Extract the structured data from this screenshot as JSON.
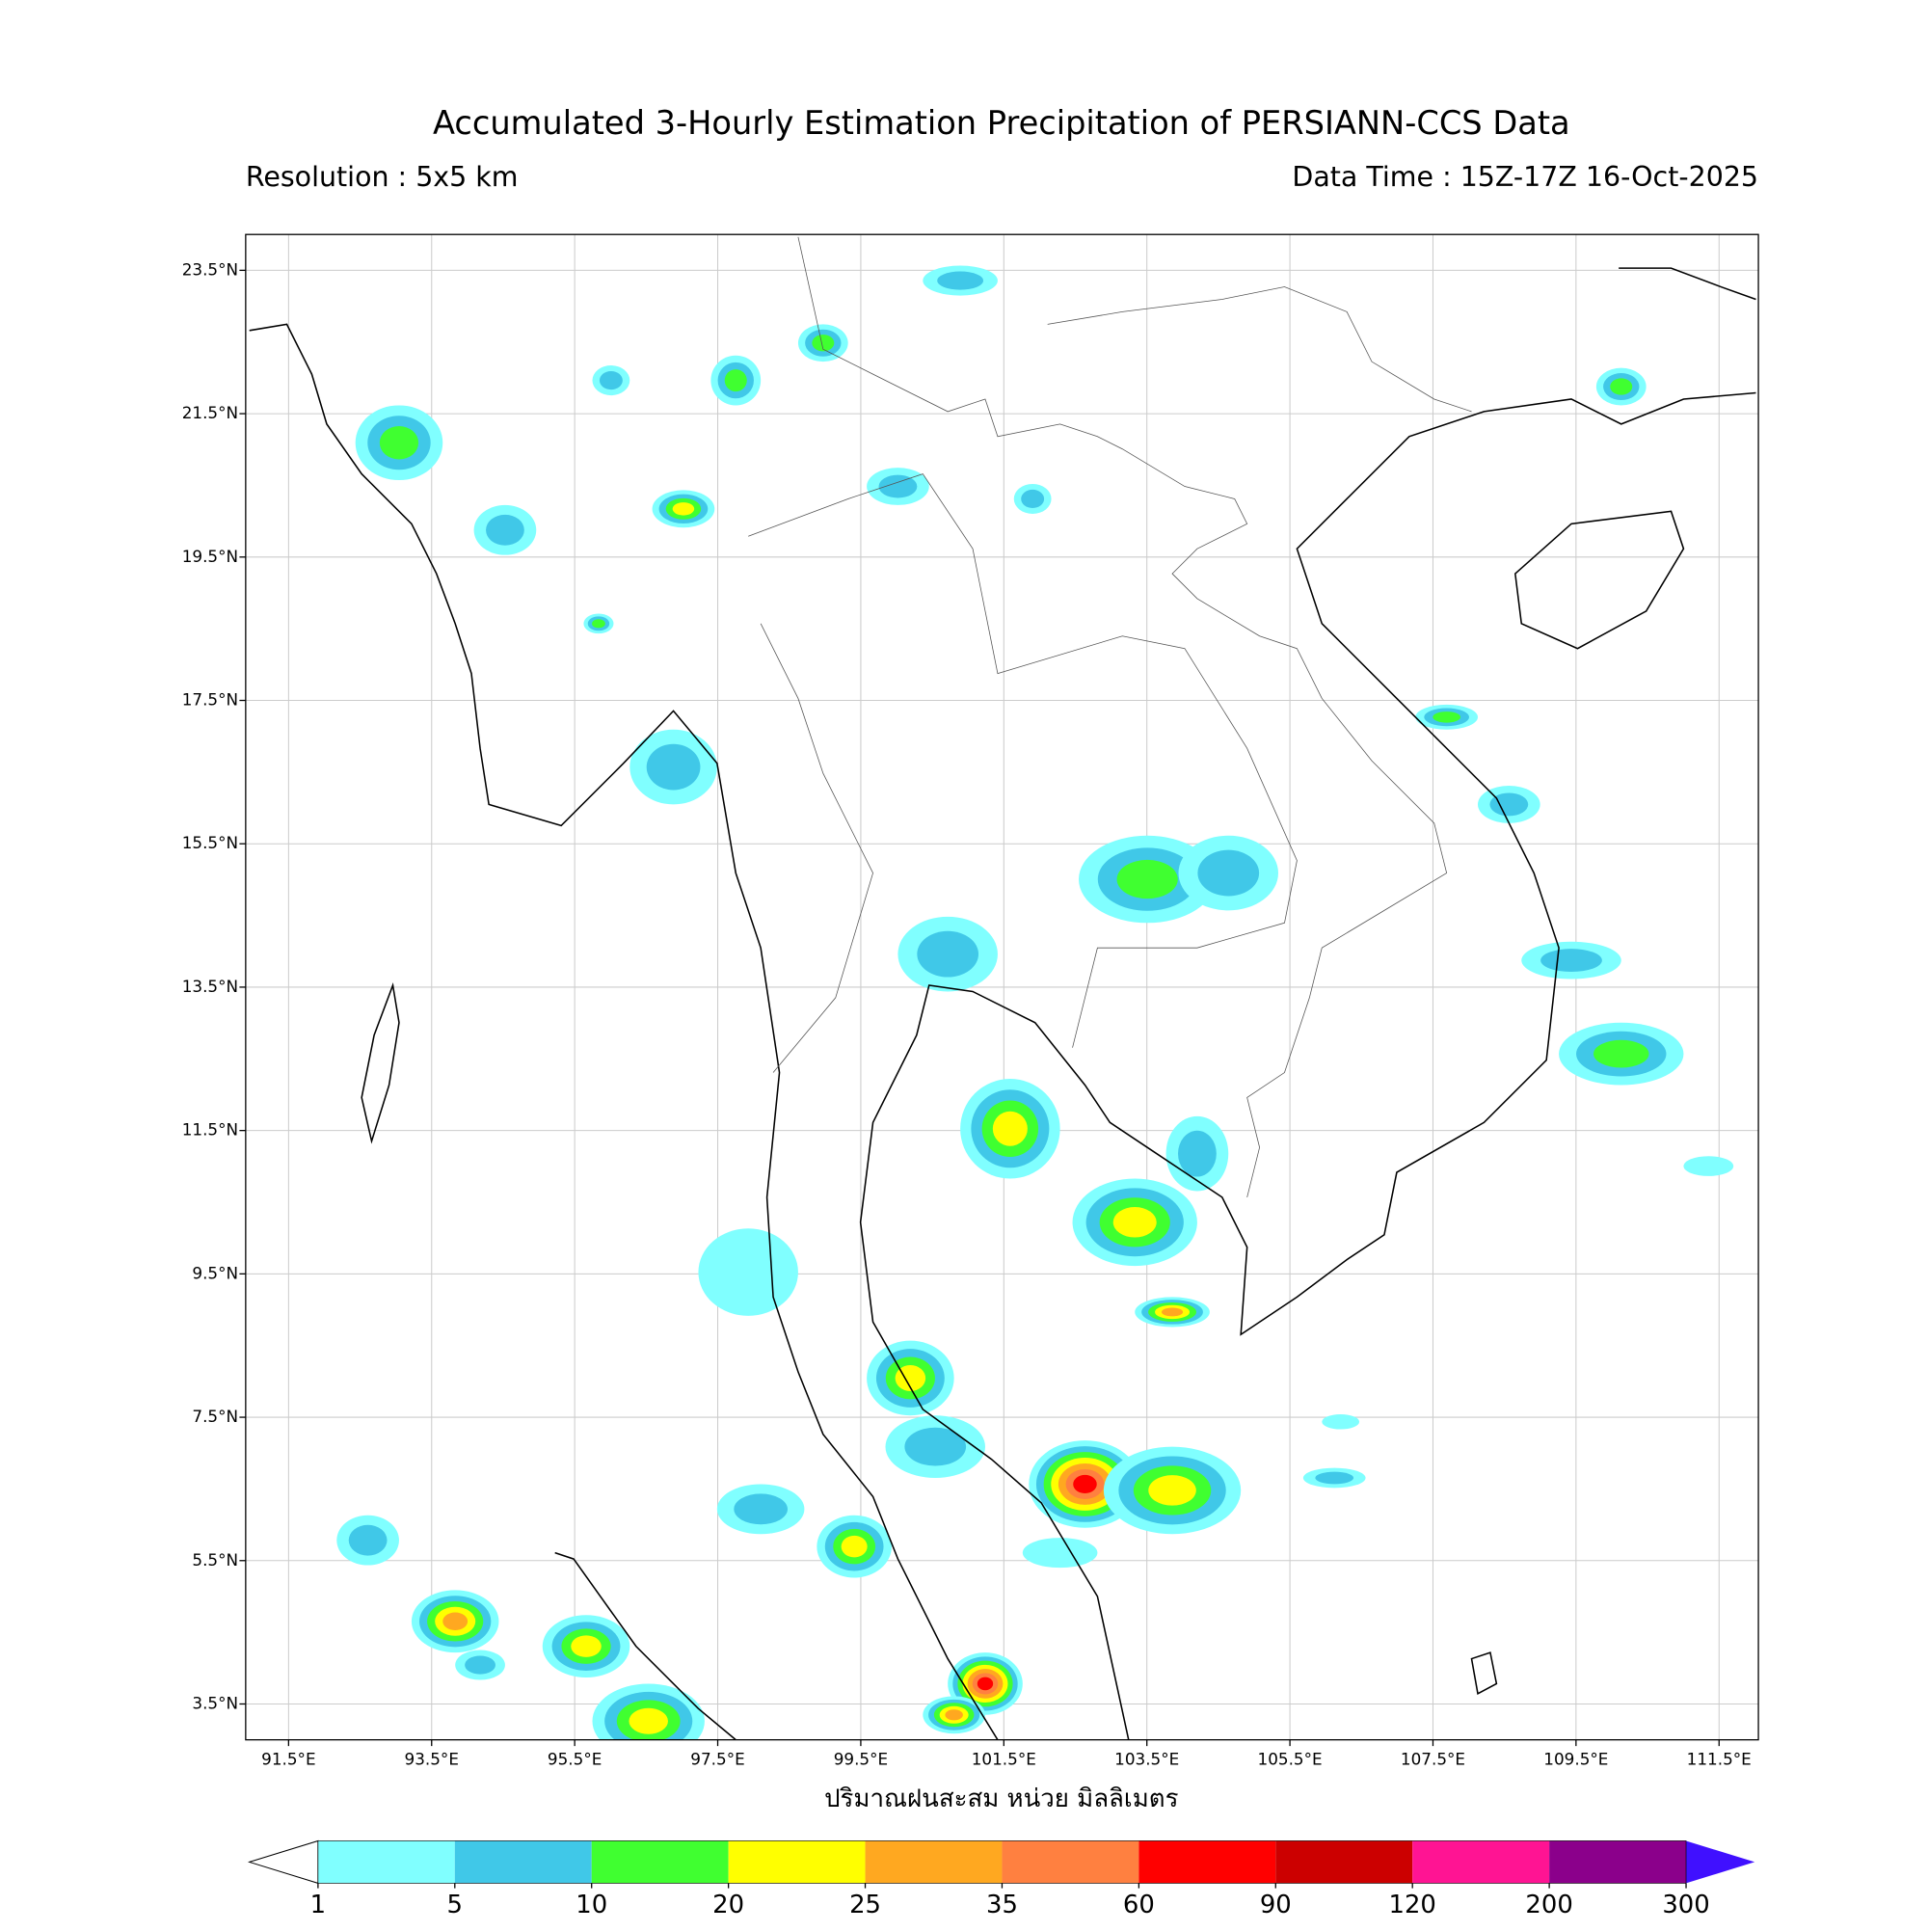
{
  "header": {
    "title": "Accumulated 3-Hourly Estimation Precipitation of PERSIANN-CCS Data",
    "resolution": "Resolution : 5x5 km",
    "data_time": "Data Time : 15Z-17Z 16-Oct-2025"
  },
  "map": {
    "lon_range": [
      90.9,
      112.05
    ],
    "lat_range": [
      3.0,
      24.0
    ],
    "lon_ticks": [
      {
        "value": 91.5,
        "label": "91.5°E"
      },
      {
        "value": 93.5,
        "label": "93.5°E"
      },
      {
        "value": 95.5,
        "label": "95.5°E"
      },
      {
        "value": 97.5,
        "label": "97.5°E"
      },
      {
        "value": 99.5,
        "label": "99.5°E"
      },
      {
        "value": 101.5,
        "label": "101.5°E"
      },
      {
        "value": 103.5,
        "label": "103.5°E"
      },
      {
        "value": 105.5,
        "label": "105.5°E"
      },
      {
        "value": 107.5,
        "label": "107.5°E"
      },
      {
        "value": 109.5,
        "label": "109.5°E"
      },
      {
        "value": 111.5,
        "label": "111.5°E"
      }
    ],
    "lat_ticks": [
      {
        "value": 23.5,
        "label": "23.5°N"
      },
      {
        "value": 21.5,
        "label": "21.5°N"
      },
      {
        "value": 19.5,
        "label": "19.5°N"
      },
      {
        "value": 17.5,
        "label": "17.5°N"
      },
      {
        "value": 15.5,
        "label": "15.5°N"
      },
      {
        "value": 13.5,
        "label": "13.5°N"
      },
      {
        "value": 11.5,
        "label": "11.5°N"
      },
      {
        "value": 9.5,
        "label": "9.5°N"
      },
      {
        "value": 7.5,
        "label": "7.5°N"
      },
      {
        "value": 5.5,
        "label": "5.5°N"
      },
      {
        "value": 3.5,
        "label": "3.5°N"
      }
    ],
    "grid": true
  },
  "colorbar": {
    "label": "ปริมาณฝนสะสม หน่วย มิลลิเมตร",
    "ticks": [
      1,
      5,
      10,
      20,
      25,
      35,
      60,
      90,
      120,
      200,
      300
    ],
    "colors": [
      "#80ffff",
      "#40c8e8",
      "#40ff30",
      "#ffff00",
      "#ffa820",
      "#ff8040",
      "#ff0000",
      "#cc0000",
      "#ff1493",
      "#8b008b"
    ],
    "under_color": "#ffffff",
    "over_color": "#4010ff"
  }
}
